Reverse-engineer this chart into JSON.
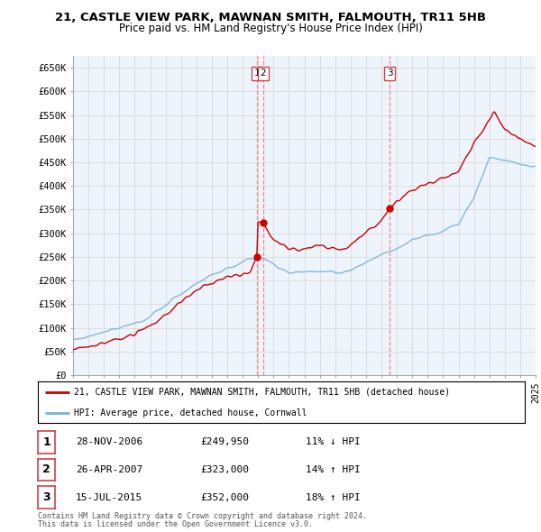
{
  "title": "21, CASTLE VIEW PARK, MAWNAN SMITH, FALMOUTH, TR11 5HB",
  "subtitle": "Price paid vs. HM Land Registry's House Price Index (HPI)",
  "x_start_year": 1995,
  "x_end_year": 2025,
  "y_min": 0,
  "y_max": 675000,
  "y_ticks": [
    0,
    50000,
    100000,
    150000,
    200000,
    250000,
    300000,
    350000,
    400000,
    450000,
    500000,
    550000,
    600000,
    650000
  ],
  "y_tick_labels": [
    "£0",
    "£50K",
    "£100K",
    "£150K",
    "£200K",
    "£250K",
    "£300K",
    "£350K",
    "£400K",
    "£450K",
    "£500K",
    "£550K",
    "£600K",
    "£650K"
  ],
  "background_color": "#ffffff",
  "grid_color": "#cccccc",
  "chart_bg_color": "#eef4fb",
  "sale_line_color": "#cc0000",
  "hpi_line_color": "#7ab0d4",
  "vline_color": "#ff7777",
  "annotation_box_color": "#cc4444",
  "transactions": [
    {
      "label": "1",
      "date": "28-NOV-2006",
      "price": 249950,
      "pct": "11%",
      "dir": "↓",
      "year": 2006.917
    },
    {
      "label": "2",
      "date": "26-APR-2007",
      "price": 323000,
      "pct": "14%",
      "dir": "↑",
      "year": 2007.32
    },
    {
      "label": "3",
      "date": "15-JUL-2015",
      "price": 352000,
      "pct": "18%",
      "dir": "↑",
      "year": 2015.54
    }
  ],
  "legend_line1": "21, CASTLE VIEW PARK, MAWNAN SMITH, FALMOUTH, TR11 5HB (detached house)",
  "legend_line2": "HPI: Average price, detached house, Cornwall",
  "footer_line1": "Contains HM Land Registry data © Crown copyright and database right 2024.",
  "footer_line2": "This data is licensed under the Open Government Licence v3.0."
}
